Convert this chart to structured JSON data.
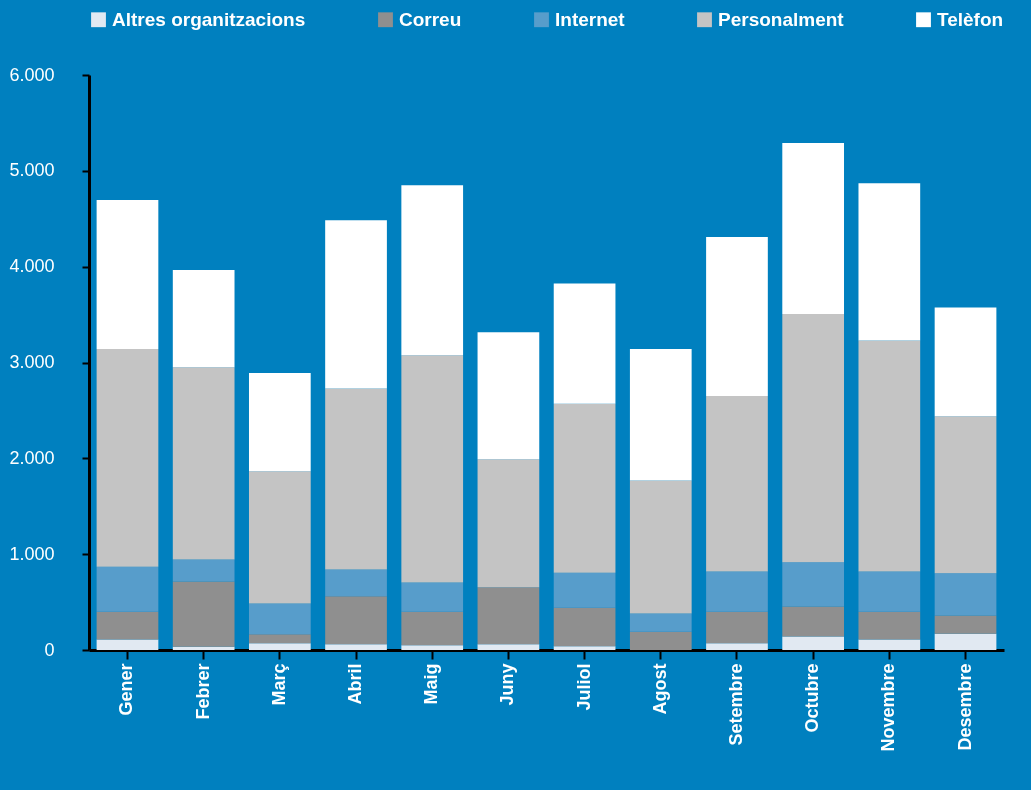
{
  "chart_data": {
    "type": "bar",
    "stacked": true,
    "legend": "top",
    "grid": false,
    "categories": [
      "Gener",
      "Febrer",
      "Març",
      "Abril",
      "Maig",
      "Juny",
      "Juliol",
      "Agost",
      "Setembre",
      "Octubre",
      "Novembre",
      "Desembre"
    ],
    "series": [
      {
        "name": "Altres organitzacions",
        "color": "#e1e9f2",
        "values": [
          110,
          35,
          70,
          60,
          50,
          60,
          40,
          0,
          70,
          140,
          110,
          170
        ]
      },
      {
        "name": "Correu",
        "color": "#8f8f8f",
        "values": [
          290,
          680,
          95,
          500,
          350,
          595,
          400,
          190,
          330,
          315,
          290,
          190
        ]
      },
      {
        "name": "Internet",
        "color": "#579dcb",
        "values": [
          470,
          230,
          320,
          280,
          305,
          0,
          365,
          190,
          420,
          460,
          420,
          440
        ]
      },
      {
        "name": "Personalment",
        "color": "#c4c4c4",
        "values": [
          2270,
          2005,
          1380,
          1890,
          2370,
          1335,
          1765,
          1390,
          1830,
          2590,
          2410,
          1640
        ]
      },
      {
        "name": "Telèfon",
        "color": "#ffffff",
        "values": [
          1555,
          1015,
          1025,
          1755,
          1775,
          1325,
          1255,
          1370,
          1660,
          1785,
          1640,
          1135
        ]
      }
    ],
    "ylim": [
      0,
      6000
    ],
    "yticks": [
      {
        "value": 0,
        "label": "0"
      },
      {
        "value": 1000,
        "label": "1.000"
      },
      {
        "value": 2000,
        "label": "2.000"
      },
      {
        "value": 3000,
        "label": "3.000"
      },
      {
        "value": 4000,
        "label": "4.000"
      },
      {
        "value": 5000,
        "label": "5.000"
      },
      {
        "value": 6000,
        "label": "6.000"
      }
    ]
  }
}
